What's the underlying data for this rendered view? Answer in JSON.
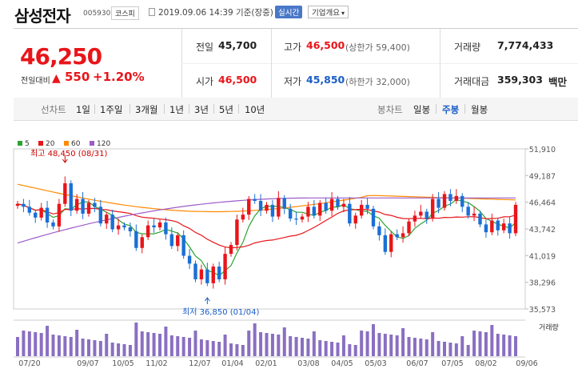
{
  "header": {
    "title": "삼성전자",
    "code": "005930",
    "market": "코스피",
    "datetime": "2019.09.06 14:39 기준(장중)",
    "realtime_label": "실시간",
    "info_label": "기업개요"
  },
  "summary": {
    "price": "46,250",
    "change_label": "전일대비",
    "change_value": "550",
    "change_pct": "+1.20%",
    "prev_close_label": "전일",
    "prev_close": "45,700",
    "high_label": "고가",
    "high": "46,500",
    "upper_limit": "(상한가 59,400)",
    "volume_label": "거래량",
    "volume": "7,774,433",
    "open_label": "시가",
    "open": "46,500",
    "low_label": "저가",
    "low": "45,850",
    "lower_limit": "(하한가 32,000)",
    "amount_label": "거래대금",
    "amount": "359,303",
    "amount_unit": "백만"
  },
  "tabs": {
    "line_label": "선차트",
    "line_periods": [
      "1일",
      "1주일",
      "3개월",
      "1년",
      "3년",
      "5년",
      "10년"
    ],
    "candle_label": "봉차트",
    "candle_periods": [
      "일봉",
      "주봉",
      "월봉"
    ],
    "candle_active": "주봉"
  },
  "chart_data": {
    "type": "candlestick",
    "legend": [
      {
        "name": "5",
        "color": "#2ba52e"
      },
      {
        "name": "20",
        "color": "#e8151a"
      },
      {
        "name": "60",
        "color": "#ff8a00"
      },
      {
        "name": "120",
        "color": "#9c5cc8"
      }
    ],
    "y_ticks": [
      "51,910",
      "49,187",
      "46,464",
      "43,742",
      "41,019",
      "38,296",
      "35,573"
    ],
    "ylim": [
      35573,
      51910
    ],
    "x_ticks": [
      "07/20",
      "09/07",
      "10/05",
      "11/02",
      "12/07",
      "01/04",
      "02/01",
      "03/08",
      "04/05",
      "05/03",
      "06/07",
      "07/05",
      "08/02",
      "09/06"
    ],
    "high_annotation": "최고 48,450 (08/31)",
    "low_annotation": "최저 36,850 (01/04)",
    "volume_label": "거래량"
  }
}
